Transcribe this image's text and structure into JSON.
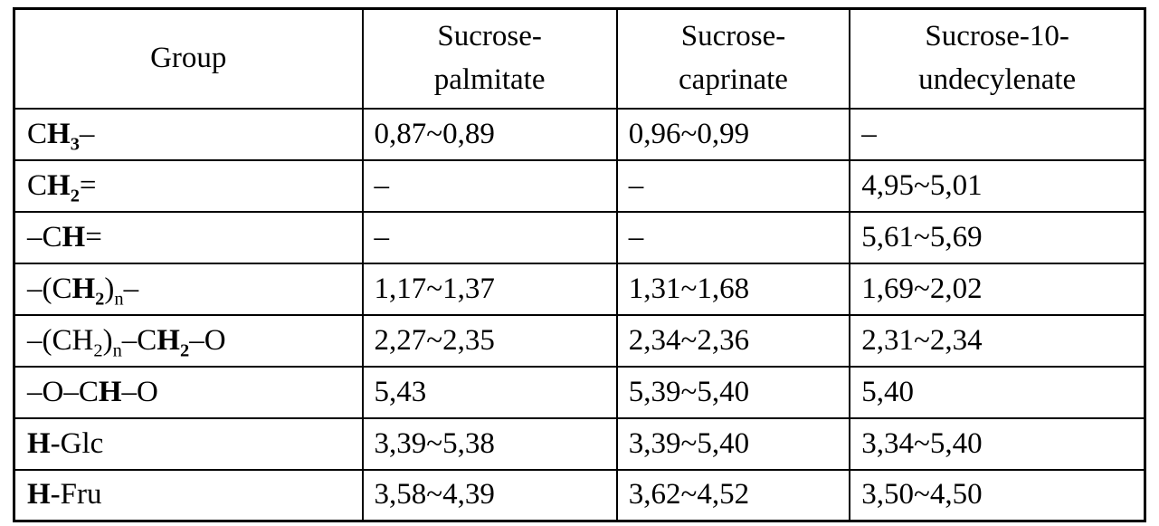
{
  "colors": {
    "background": "#ffffff",
    "border": "#000000",
    "text": "#000000"
  },
  "table": {
    "columns": [
      {
        "id": "group",
        "lines": [
          "Group"
        ]
      },
      {
        "id": "sucrose-palmitate",
        "lines": [
          "Sucrose-",
          "palmitate"
        ]
      },
      {
        "id": "sucrose-caprinate",
        "lines": [
          "Sucrose-",
          "caprinate"
        ]
      },
      {
        "id": "sucrose-10-undecylenate",
        "lines": [
          "Sucrose-10-",
          "undecylenate"
        ]
      }
    ],
    "rows": [
      {
        "group_runs": [
          {
            "text": "C"
          },
          {
            "text": "H",
            "bold": true
          },
          {
            "text": "3",
            "bold": true,
            "sub": true
          },
          {
            "text": "–"
          }
        ],
        "values": [
          "0,87~0,89",
          "0,96~0,99",
          "–"
        ]
      },
      {
        "group_runs": [
          {
            "text": "C"
          },
          {
            "text": "H",
            "bold": true
          },
          {
            "text": "2",
            "bold": true,
            "sub": true
          },
          {
            "text": "="
          }
        ],
        "values": [
          "–",
          "–",
          "4,95~5,01"
        ]
      },
      {
        "group_runs": [
          {
            "text": "–C"
          },
          {
            "text": "H",
            "bold": true
          },
          {
            "text": "="
          }
        ],
        "values": [
          "–",
          "–",
          "5,61~5,69"
        ]
      },
      {
        "group_runs": [
          {
            "text": "–(C"
          },
          {
            "text": "H",
            "bold": true
          },
          {
            "text": "2",
            "bold": true,
            "sub": true
          },
          {
            "text": ")"
          },
          {
            "text": "n",
            "sub": true
          },
          {
            "text": "–"
          }
        ],
        "values": [
          "1,17~1,37",
          "1,31~1,68",
          "1,69~2,02"
        ]
      },
      {
        "group_runs": [
          {
            "text": "–(CH"
          },
          {
            "text": "2",
            "sub": true
          },
          {
            "text": ")"
          },
          {
            "text": "n",
            "sub": true
          },
          {
            "text": "–C"
          },
          {
            "text": "H",
            "bold": true
          },
          {
            "text": "2",
            "bold": true,
            "sub": true
          },
          {
            "text": "–O"
          }
        ],
        "values": [
          "2,27~2,35",
          "2,34~2,36",
          "2,31~2,34"
        ]
      },
      {
        "group_runs": [
          {
            "text": "–O–C"
          },
          {
            "text": "H",
            "bold": true
          },
          {
            "text": "–O"
          }
        ],
        "values": [
          "5,43",
          "5,39~5,40",
          "5,40"
        ]
      },
      {
        "group_runs": [
          {
            "text": "H",
            "bold": true
          },
          {
            "text": "-Glc"
          }
        ],
        "values": [
          "3,39~5,38",
          "3,39~5,40",
          "3,34~5,40"
        ]
      },
      {
        "group_runs": [
          {
            "text": "H",
            "bold": true
          },
          {
            "text": "-Fru"
          }
        ],
        "values": [
          "3,58~4,39",
          "3,62~4,52",
          "3,50~4,50"
        ]
      }
    ]
  }
}
